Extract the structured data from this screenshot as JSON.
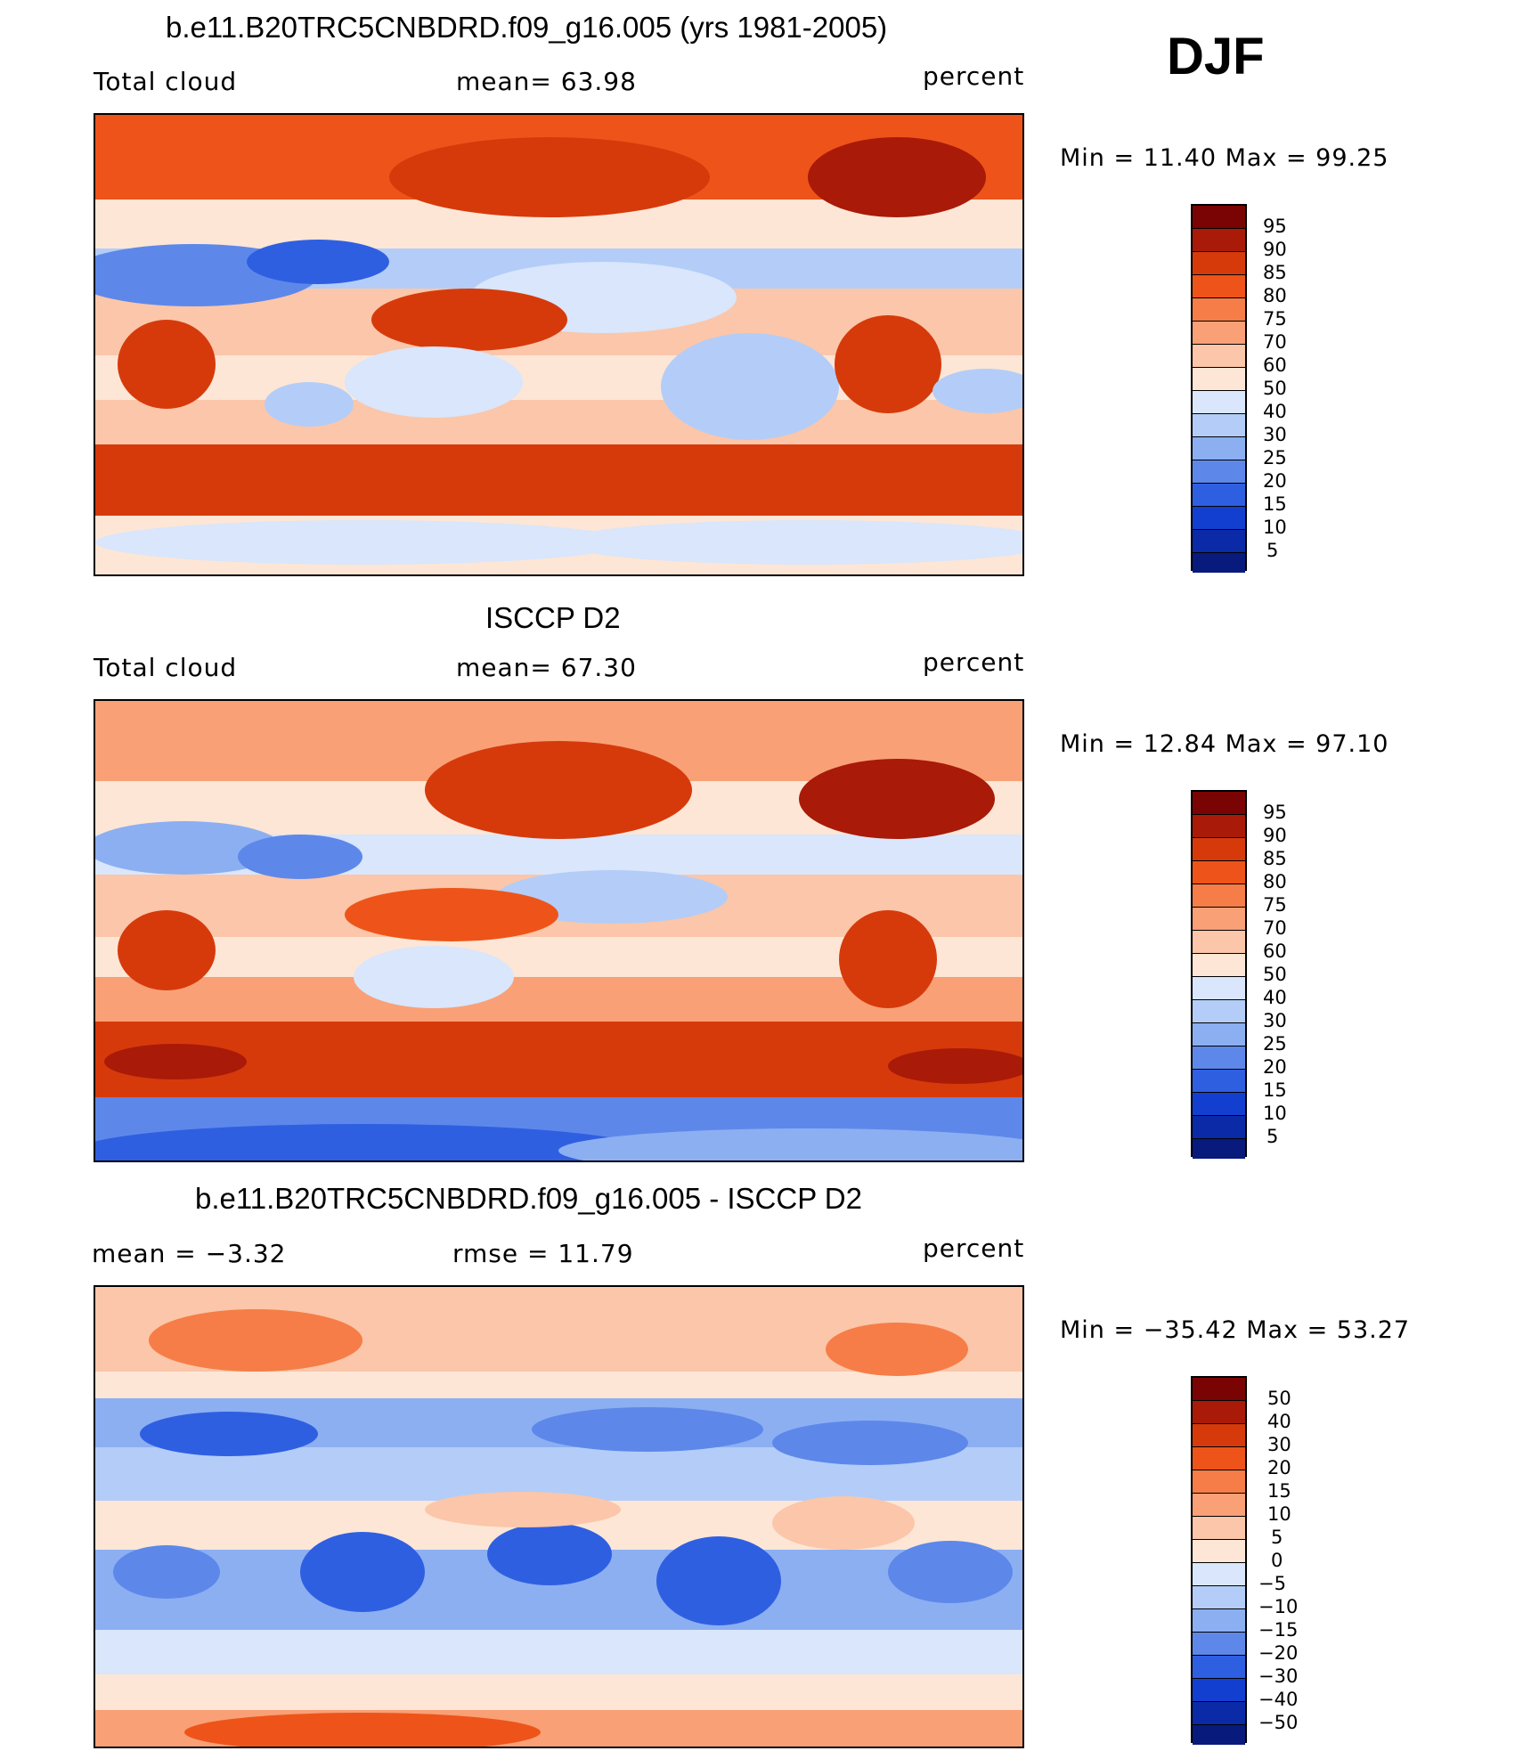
{
  "season": "DJF",
  "panels": [
    {
      "title": "b.e11.B20TRC5CNBDRD.f09_g16.005 (yrs 1981-2005)",
      "left_label": "Total cloud",
      "center_label": "mean=   63.98",
      "right_label": "percent",
      "range_text": "Min =   11.40  Max =   99.25",
      "colorbar_ticks": [
        "95",
        "90",
        "85",
        "80",
        "75",
        "70",
        "60",
        "50",
        "40",
        "30",
        "25",
        "20",
        "15",
        "10",
        "5"
      ]
    },
    {
      "title": "ISCCP D2",
      "left_label": "Total cloud",
      "center_label": "mean=   67.30",
      "right_label": "percent",
      "range_text": "Min =   12.84  Max =   97.10",
      "colorbar_ticks": [
        "95",
        "90",
        "85",
        "80",
        "75",
        "70",
        "60",
        "50",
        "40",
        "30",
        "25",
        "20",
        "15",
        "10",
        "5"
      ]
    },
    {
      "title": "b.e11.B20TRC5CNBDRD.f09_g16.005 - ISCCP D2",
      "left_label": "mean =   −3.32",
      "center_label": "rmse =   11.79",
      "right_label": "percent",
      "range_text": "Min = −35.42  Max =   53.27",
      "colorbar_ticks": [
        "50",
        "40",
        "30",
        "20",
        "15",
        "10",
        "5",
        "0",
        "−5",
        "−10",
        "−15",
        "−20",
        "−30",
        "−40",
        "−50"
      ]
    }
  ],
  "colors": {
    "palette": [
      "#7a0403",
      "#a91a08",
      "#d63a0b",
      "#ee5419",
      "#f67d47",
      "#f9a077",
      "#fbc6a9",
      "#fde6d6",
      "#d9e6fb",
      "#b3cdf8",
      "#8caff2",
      "#5d88ea",
      "#2f5fe1",
      "#133fd0",
      "#0a2aa8",
      "#081a7c"
    ],
    "coast": "#000000",
    "frame": "#000000"
  }
}
